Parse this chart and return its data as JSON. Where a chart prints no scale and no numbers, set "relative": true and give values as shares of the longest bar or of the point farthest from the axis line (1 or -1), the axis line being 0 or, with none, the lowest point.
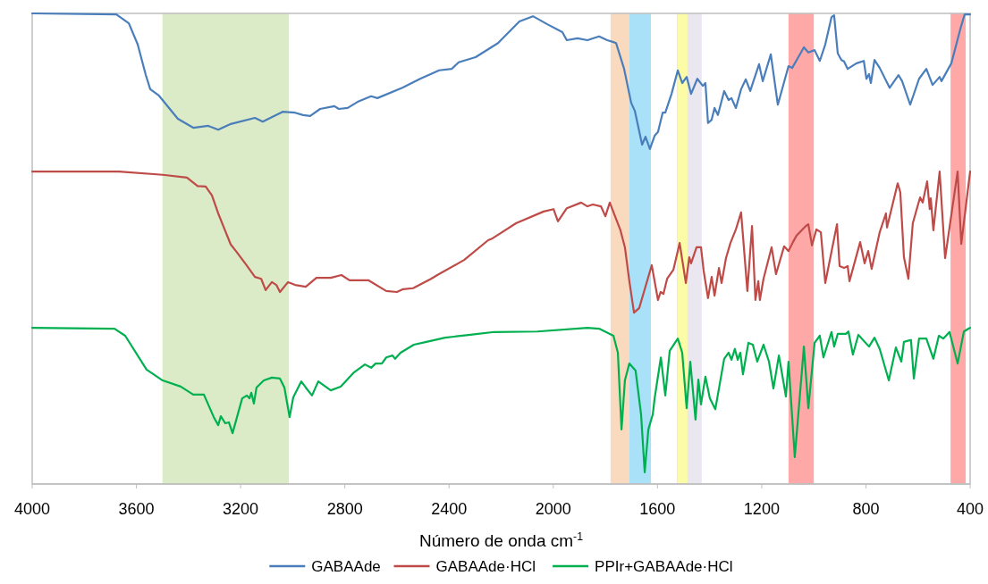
{
  "chart_data": {
    "type": "line",
    "relative": true,
    "xlabel": "Número de onda cm$^{-1}$",
    "xlim": [
      4000,
      400
    ],
    "xticks": [
      4000,
      3600,
      3200,
      2800,
      2400,
      2000,
      1600,
      1200,
      800,
      400
    ],
    "legend": "bottom",
    "marker": "none",
    "line_style": "solid",
    "grid": false,
    "bands": [
      {
        "axis": "x",
        "from": 3500,
        "to": 3015,
        "color": "#d5e8bd"
      },
      {
        "axis": "x",
        "from": 1780,
        "to": 1708,
        "color": "#f9d3b3"
      },
      {
        "axis": "x",
        "from": 1708,
        "to": 1625,
        "color": "#9adcf7"
      },
      {
        "axis": "x",
        "from": 1526,
        "to": 1430,
        "color": "#e6e3ef"
      },
      {
        "axis": "x",
        "from": 1522,
        "to": 1485,
        "color": "#ffff99"
      },
      {
        "axis": "x",
        "from": 1097,
        "to": 1000,
        "color": "#ff9999"
      },
      {
        "axis": "x",
        "from": 475,
        "to": 417,
        "color": "#ff9999"
      }
    ],
    "series": [
      {
        "name": "GABAAde",
        "color": "#4a7ebb",
        "x": [
          4000,
          3677,
          3629,
          3595,
          3564,
          3547,
          3513,
          3441,
          3382,
          3324,
          3286,
          3238,
          3145,
          3115,
          3039,
          2991,
          2960,
          2933,
          2895,
          2840,
          2823,
          2789,
          2751,
          2699,
          2675,
          2579,
          2511,
          2438,
          2390,
          2363,
          2298,
          2212,
          2130,
          2078,
          2023,
          1965,
          1948,
          1907,
          1869,
          1824,
          1793,
          1769,
          1759,
          1728,
          1701,
          1687,
          1659,
          1646,
          1629,
          1611,
          1598,
          1580,
          1570,
          1546,
          1522,
          1505,
          1488,
          1471,
          1447,
          1426,
          1416,
          1406,
          1392,
          1381,
          1368,
          1344,
          1327,
          1316,
          1299,
          1279,
          1261,
          1244,
          1210,
          1196,
          1165,
          1138,
          1097,
          1083,
          1038,
          1021,
          997,
          977,
          956,
          932,
          922,
          908,
          894,
          884,
          870,
          836,
          808,
          798,
          788,
          781,
          767,
          747,
          709,
          675,
          661,
          630,
          596,
          568,
          544,
          517,
          510,
          472,
          438,
          421,
          400
        ],
        "values": [
          1.0,
          0.998,
          0.979,
          0.934,
          0.869,
          0.839,
          0.825,
          0.776,
          0.757,
          0.761,
          0.753,
          0.765,
          0.778,
          0.77,
          0.791,
          0.789,
          0.784,
          0.782,
          0.797,
          0.803,
          0.797,
          0.799,
          0.812,
          0.824,
          0.82,
          0.842,
          0.861,
          0.879,
          0.882,
          0.896,
          0.907,
          0.937,
          0.983,
          0.994,
          0.977,
          0.96,
          0.943,
          0.947,
          0.943,
          0.951,
          0.943,
          0.939,
          0.937,
          0.882,
          0.81,
          0.793,
          0.721,
          0.738,
          0.712,
          0.74,
          0.748,
          0.789,
          0.789,
          0.829,
          0.879,
          0.852,
          0.865,
          0.829,
          0.861,
          0.846,
          0.852,
          0.767,
          0.774,
          0.799,
          0.784,
          0.835,
          0.816,
          0.82,
          0.799,
          0.839,
          0.86,
          0.835,
          0.892,
          0.856,
          0.913,
          0.806,
          0.888,
          0.884,
          0.928,
          0.917,
          0.922,
          0.899,
          0.934,
          0.992,
          0.996,
          0.915,
          0.901,
          0.898,
          0.882,
          0.894,
          0.899,
          0.861,
          0.871,
          0.852,
          0.901,
          0.884,
          0.842,
          0.869,
          0.856,
          0.806,
          0.861,
          0.882,
          0.848,
          0.865,
          0.856,
          0.894,
          0.966,
          0.998,
          0.998
        ]
      },
      {
        "name": "GABAAde·HCl",
        "color": "#be4b48",
        "x": [
          4000,
          3667,
          3499,
          3406,
          3365,
          3334,
          3310,
          3286,
          3238,
          3218,
          3180,
          3145,
          3121,
          3104,
          3080,
          3063,
          3049,
          3018,
          2991,
          2950,
          2909,
          2854,
          2813,
          2782,
          2710,
          2641,
          2600,
          2576,
          2538,
          2469,
          2445,
          2342,
          2250,
          2233,
          2143,
          2037,
          1999,
          1982,
          1948,
          1893,
          1869,
          1848,
          1817,
          1800,
          1783,
          1742,
          1725,
          1708,
          1690,
          1670,
          1622,
          1598,
          1588,
          1577,
          1563,
          1539,
          1515,
          1491,
          1478,
          1471,
          1450,
          1433,
          1423,
          1406,
          1392,
          1381,
          1364,
          1354,
          1337,
          1320,
          1299,
          1279,
          1255,
          1237,
          1224,
          1213,
          1207,
          1193,
          1162,
          1145,
          1114,
          1097,
          1080,
          1066,
          1031,
          1021,
          1007,
          990,
          973,
          956,
          911,
          901,
          884,
          870,
          863,
          822,
          805,
          791,
          778,
          747,
          723,
          719,
          678,
          668,
          654,
          637,
          620,
          592,
          582,
          565,
          555,
          551,
          541,
          517,
          496,
          448,
          434,
          400
        ],
        "values": [
          0.664,
          0.664,
          0.657,
          0.651,
          0.633,
          0.632,
          0.613,
          0.575,
          0.509,
          0.495,
          0.467,
          0.44,
          0.436,
          0.412,
          0.429,
          0.423,
          0.408,
          0.429,
          0.423,
          0.419,
          0.438,
          0.438,
          0.444,
          0.433,
          0.433,
          0.41,
          0.408,
          0.414,
          0.416,
          0.436,
          0.444,
          0.476,
          0.518,
          0.522,
          0.554,
          0.579,
          0.584,
          0.558,
          0.586,
          0.598,
          0.59,
          0.594,
          0.59,
          0.569,
          0.598,
          0.539,
          0.503,
          0.431,
          0.364,
          0.374,
          0.465,
          0.391,
          0.408,
          0.404,
          0.436,
          0.455,
          0.512,
          0.427,
          0.482,
          0.469,
          0.503,
          0.503,
          0.454,
          0.395,
          0.44,
          0.4,
          0.459,
          0.427,
          0.48,
          0.512,
          0.541,
          0.577,
          0.41,
          0.548,
          0.391,
          0.431,
          0.391,
          0.436,
          0.503,
          0.446,
          0.505,
          0.495,
          0.514,
          0.528,
          0.548,
          0.552,
          0.507,
          0.541,
          0.535,
          0.427,
          0.552,
          0.463,
          0.459,
          0.463,
          0.431,
          0.514,
          0.469,
          0.495,
          0.457,
          0.535,
          0.575,
          0.545,
          0.639,
          0.62,
          0.482,
          0.436,
          0.554,
          0.609,
          0.598,
          0.643,
          0.584,
          0.607,
          0.539,
          0.664,
          0.48,
          0.664,
          0.51,
          0.664
        ]
      },
      {
        "name": "PPIr+GABAAde·HCl",
        "color": "#00b050",
        "x": [
          4000,
          3684,
          3643,
          3561,
          3499,
          3430,
          3382,
          3341,
          3303,
          3286,
          3276,
          3259,
          3245,
          3231,
          3194,
          3176,
          3166,
          3159,
          3149,
          3139,
          3111,
          3080,
          3049,
          3032,
          3012,
          2998,
          2967,
          2950,
          2926,
          2902,
          2854,
          2816,
          2765,
          2723,
          2699,
          2682,
          2658,
          2641,
          2617,
          2607,
          2586,
          2535,
          2487,
          2415,
          2318,
          2226,
          2061,
          1869,
          1824,
          1769,
          1752,
          1738,
          1725,
          1708,
          1684,
          1663,
          1649,
          1635,
          1618,
          1611,
          1587,
          1570,
          1553,
          1522,
          1505,
          1488,
          1474,
          1454,
          1443,
          1433,
          1416,
          1399,
          1378,
          1344,
          1327,
          1316,
          1303,
          1292,
          1282,
          1272,
          1251,
          1234,
          1217,
          1193,
          1172,
          1155,
          1134,
          1124,
          1107,
          1097,
          1073,
          1038,
          1021,
          997,
          977,
          963,
          932,
          922,
          908,
          877,
          867,
          850,
          829,
          788,
          767,
          747,
          712,
          685,
          664,
          654,
          627,
          616,
          596,
          568,
          541,
          520,
          503,
          479,
          448,
          424,
          400
        ],
        "values": [
          0.332,
          0.33,
          0.315,
          0.243,
          0.22,
          0.207,
          0.19,
          0.19,
          0.142,
          0.125,
          0.144,
          0.129,
          0.131,
          0.108,
          0.182,
          0.188,
          0.182,
          0.194,
          0.171,
          0.205,
          0.22,
          0.226,
          0.224,
          0.205,
          0.142,
          0.184,
          0.218,
          0.205,
          0.188,
          0.218,
          0.199,
          0.207,
          0.237,
          0.254,
          0.247,
          0.256,
          0.256,
          0.269,
          0.273,
          0.266,
          0.279,
          0.296,
          0.302,
          0.311,
          0.317,
          0.323,
          0.324,
          0.332,
          0.33,
          0.315,
          0.279,
          0.116,
          0.22,
          0.256,
          0.241,
          0.148,
          0.025,
          0.116,
          0.148,
          0.182,
          0.269,
          0.188,
          0.283,
          0.309,
          0.279,
          0.161,
          0.26,
          0.137,
          0.222,
          0.169,
          0.228,
          0.182,
          0.159,
          0.266,
          0.279,
          0.264,
          0.287,
          0.264,
          0.279,
          0.233,
          0.3,
          0.296,
          0.26,
          0.296,
          0.26,
          0.203,
          0.273,
          0.241,
          0.186,
          0.26,
          0.057,
          0.292,
          0.161,
          0.3,
          0.315,
          0.269,
          0.323,
          0.292,
          0.319,
          0.319,
          0.324,
          0.275,
          0.317,
          0.292,
          0.311,
          0.287,
          0.22,
          0.29,
          0.26,
          0.302,
          0.306,
          0.224,
          0.309,
          0.309,
          0.266,
          0.315,
          0.309,
          0.323,
          0.256,
          0.324,
          0.332
        ]
      }
    ]
  }
}
